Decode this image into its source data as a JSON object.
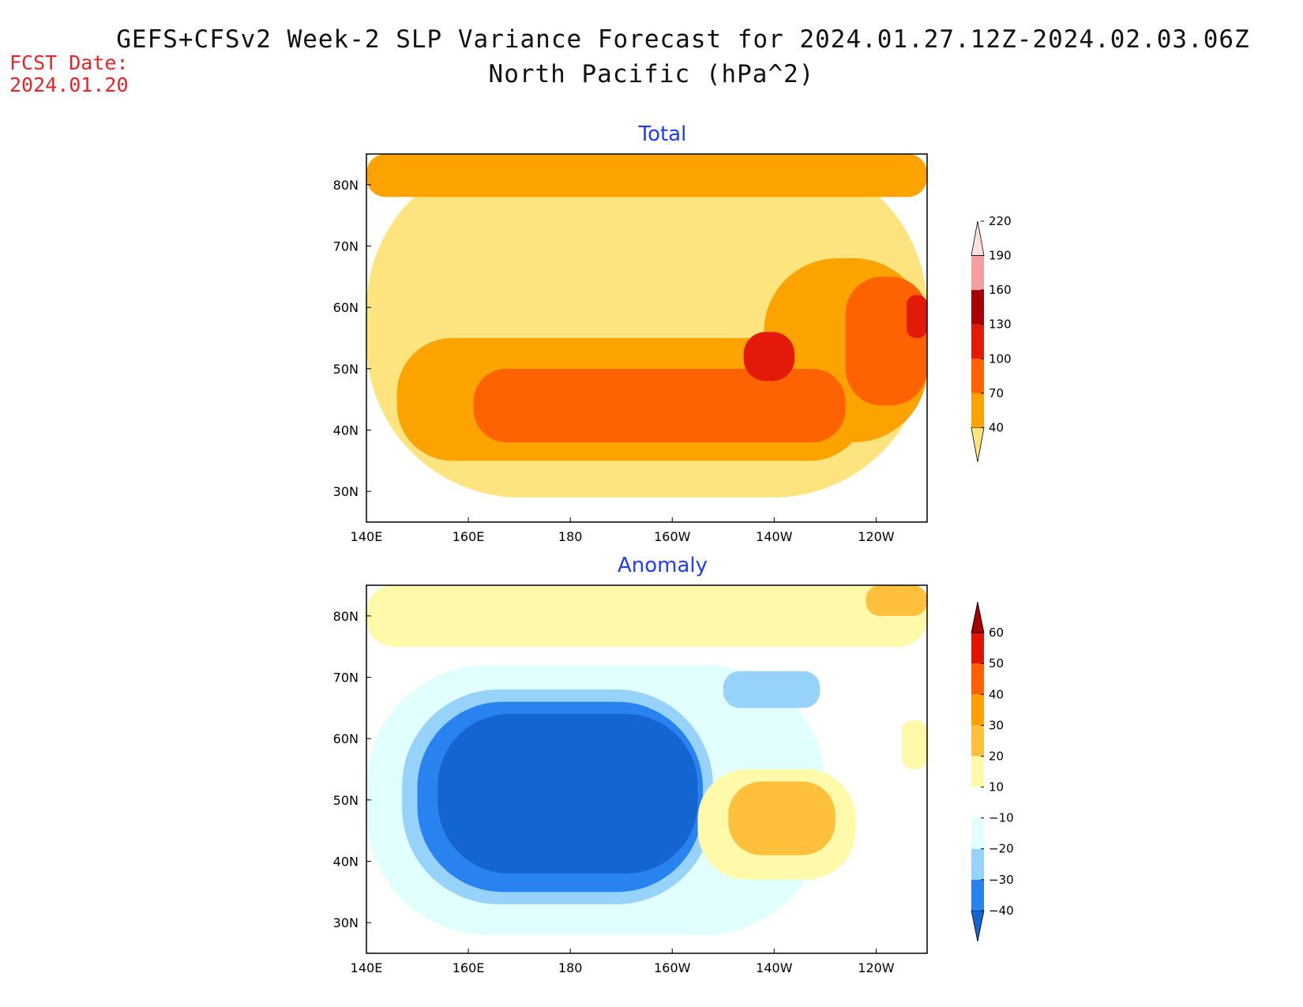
{
  "header": {
    "title_line1": "GEFS+CFSv2 Week-2 SLP Variance Forecast for 2024.01.27.12Z-2024.02.03.06Z",
    "title_line2": "North Pacific (hPa^2)",
    "fcst_label": "FCST Date:",
    "fcst_value": "2024.01.20"
  },
  "colors": {
    "title_panel": "#1f3cff",
    "fcst_text": "#e8242a"
  },
  "chart_data": [
    {
      "type": "map-contour",
      "title": "Total",
      "region": "North Pacific",
      "lon_range": [
        140,
        250
      ],
      "lat_range": [
        25,
        85
      ],
      "x_tick_labels": [
        "140E",
        "160E",
        "180",
        "160W",
        "140W",
        "120W"
      ],
      "y_tick_labels": [
        "30N",
        "40N",
        "50N",
        "60N",
        "70N",
        "80N"
      ],
      "legend_levels": [
        40,
        70,
        100,
        130,
        160,
        190,
        220
      ],
      "legend_colors": [
        "#fde47e",
        "#fda300",
        "#ff6300",
        "#e31a0a",
        "#a80000",
        "#f5a0a0",
        "#fde0e0"
      ],
      "fields": [
        {
          "level": 40,
          "regions": [
            {
              "lat_min": 29,
              "lat_max": 85,
              "lon_min": 140,
              "lon_max": 250
            }
          ]
        },
        {
          "level": 70,
          "regions": [
            {
              "lat_min": 35,
              "lat_max": 55,
              "lon_min": 146,
              "lon_max": 238
            },
            {
              "lat_min": 38,
              "lat_max": 68,
              "lon_min": 218,
              "lon_max": 250
            },
            {
              "lat_min": 78,
              "lat_max": 85,
              "lon_min": 140,
              "lon_max": 250
            }
          ]
        },
        {
          "level": 100,
          "regions": [
            {
              "lat_min": 38,
              "lat_max": 50,
              "lon_min": 161,
              "lon_max": 234
            },
            {
              "lat_min": 44,
              "lat_max": 65,
              "lon_min": 234,
              "lon_max": 250
            }
          ]
        },
        {
          "level": 130,
          "regions": [
            {
              "lat_min": 48,
              "lat_max": 56,
              "lon_min": 214,
              "lon_max": 224
            },
            {
              "lat_min": 55,
              "lat_max": 62,
              "lon_min": 246,
              "lon_max": 250
            }
          ]
        }
      ]
    },
    {
      "type": "map-contour",
      "title": "Anomaly",
      "region": "North Pacific",
      "lon_range": [
        140,
        250
      ],
      "lat_range": [
        25,
        85
      ],
      "x_tick_labels": [
        "140E",
        "160E",
        "180",
        "160W",
        "140W",
        "120W"
      ],
      "y_tick_labels": [
        "30N",
        "40N",
        "50N",
        "60N",
        "70N",
        "80N"
      ],
      "legend_levels": [
        -40,
        -30,
        -20,
        -10,
        10,
        20,
        30,
        40,
        50,
        60
      ],
      "legend_colors": [
        "#1464d2",
        "#2882f0",
        "#96d2fa",
        "#e1ffff",
        "#ffffff",
        "#fffaaa",
        "#ffc03c",
        "#ffa000",
        "#ff6000",
        "#e11400",
        "#a50000"
      ],
      "fields": [
        {
          "level": -10,
          "regions": [
            {
              "lat_min": 28,
              "lat_max": 72,
              "lon_min": 140,
              "lon_max": 230
            }
          ]
        },
        {
          "level": -20,
          "regions": [
            {
              "lat_min": 33,
              "lat_max": 68,
              "lon_min": 147,
              "lon_max": 208
            },
            {
              "lat_min": 65,
              "lat_max": 71,
              "lon_min": 210,
              "lon_max": 229
            }
          ]
        },
        {
          "level": -30,
          "regions": [
            {
              "lat_min": 35,
              "lat_max": 66,
              "lon_min": 150,
              "lon_max": 206
            }
          ]
        },
        {
          "level": -40,
          "regions": [
            {
              "lat_min": 38,
              "lat_max": 64,
              "lon_min": 154,
              "lon_max": 205
            }
          ]
        },
        {
          "level": 10,
          "regions": [
            {
              "lat_min": 37,
              "lat_max": 55,
              "lon_min": 205,
              "lon_max": 236
            },
            {
              "lat_min": 75,
              "lat_max": 85,
              "lon_min": 140,
              "lon_max": 250
            },
            {
              "lat_min": 55,
              "lat_max": 63,
              "lon_min": 245,
              "lon_max": 250
            }
          ]
        },
        {
          "level": 20,
          "regions": [
            {
              "lat_min": 41,
              "lat_max": 53,
              "lon_min": 211,
              "lon_max": 232
            },
            {
              "lat_min": 80,
              "lat_max": 85,
              "lon_min": 238,
              "lon_max": 250
            }
          ]
        }
      ]
    }
  ]
}
